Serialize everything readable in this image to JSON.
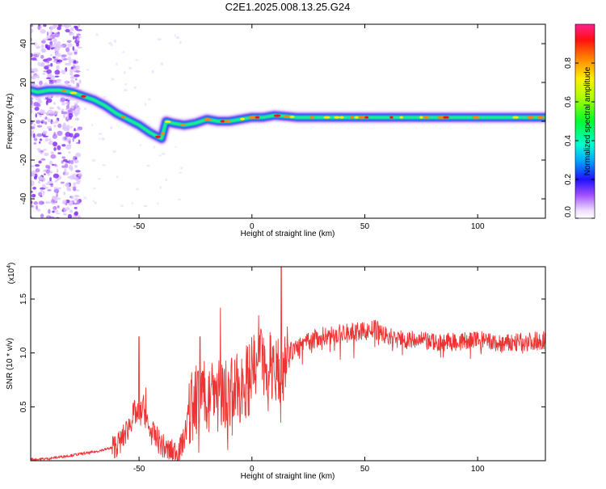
{
  "title": "C2E1.2025.008.13.25.G24",
  "chart_data": [
    {
      "type": "heatmap",
      "xlabel": "Height of straight line (km)",
      "ylabel": "Frequency (Hz)",
      "xlim": [
        -98,
        130
      ],
      "ylim": [
        -50,
        50
      ],
      "xticks": [
        -50,
        0,
        50,
        100
      ],
      "yticks": [
        -40,
        -20,
        0,
        20,
        40
      ],
      "colorbar": {
        "label": "Normalized spectral amplitude",
        "range": [
          0,
          1
        ],
        "ticks": [
          "0.0",
          "0.2",
          "0.4",
          "0.6",
          "0.8"
        ],
        "tick_values": [
          0,
          0.2,
          0.4,
          0.6,
          0.8
        ]
      },
      "ridge": {
        "x": [
          -98,
          -95,
          -90,
          -85,
          -80,
          -75,
          -70,
          -65,
          -60,
          -55,
          -50,
          -45,
          -40,
          -38,
          -35,
          -30,
          -25,
          -20,
          -15,
          -10,
          -5,
          0,
          5,
          10,
          20,
          40,
          60,
          80,
          100,
          130
        ],
        "y": [
          16,
          15,
          16,
          16,
          15,
          13,
          11,
          8,
          4,
          1,
          -2,
          -6,
          -9,
          0,
          -1,
          -2,
          -1,
          1,
          0,
          0,
          1,
          2,
          2,
          3,
          2,
          2,
          2,
          2,
          2,
          2
        ]
      }
    },
    {
      "type": "line",
      "xlabel": "Height of straight line (km)",
      "ylabel": "SNR (10 * v/v)",
      "y_multiplier": "(x10",
      "y_exponent": "4",
      "xlim": [
        -98,
        130
      ],
      "ylim": [
        0,
        1.8
      ],
      "xticks": [
        -50,
        0,
        50,
        100
      ],
      "yticks": [
        0.5,
        1.0,
        1.5
      ],
      "color": "#ee3333",
      "series": [
        {
          "x": [
            -98,
            -90,
            -80,
            -70,
            -62,
            -58,
            -55,
            -52,
            -50,
            -48,
            -46,
            -44,
            -42,
            -40,
            -38,
            -35,
            -32,
            -30,
            -28,
            -25,
            -22,
            -20,
            -18,
            -15,
            -12,
            -10,
            -8,
            -5,
            -2,
            0,
            2,
            4,
            6,
            8,
            10,
            12,
            13,
            14,
            16,
            20,
            25,
            30,
            40,
            50,
            55,
            60,
            70,
            80,
            90,
            100,
            110,
            120,
            130
          ],
          "y": [
            0.01,
            0.02,
            0.05,
            0.08,
            0.12,
            0.18,
            0.3,
            0.45,
            0.4,
            0.5,
            0.3,
            0.25,
            0.2,
            0.15,
            0.1,
            0.08,
            0.1,
            0.2,
            0.45,
            0.55,
            0.6,
            0.7,
            0.75,
            0.6,
            0.65,
            0.55,
            0.6,
            0.7,
            0.75,
            0.8,
            0.85,
            0.9,
            0.95,
            0.9,
            0.95,
            0.9,
            0.6,
            0.95,
            1.0,
            1.05,
            1.1,
            1.15,
            1.18,
            1.2,
            1.22,
            1.15,
            1.12,
            1.1,
            1.1,
            1.12,
            1.08,
            1.1,
            1.12
          ]
        }
      ],
      "peaks": [
        {
          "x": -50,
          "y": 1.15
        },
        {
          "x": -47,
          "y": 0.68
        },
        {
          "x": -27,
          "y": 0.75
        },
        {
          "x": -23,
          "y": 1.15
        },
        {
          "x": -14,
          "y": 1.42
        },
        {
          "x": -9,
          "y": 0.95
        },
        {
          "x": 3,
          "y": 1.35
        },
        {
          "x": 13,
          "y": 1.8
        }
      ]
    }
  ]
}
